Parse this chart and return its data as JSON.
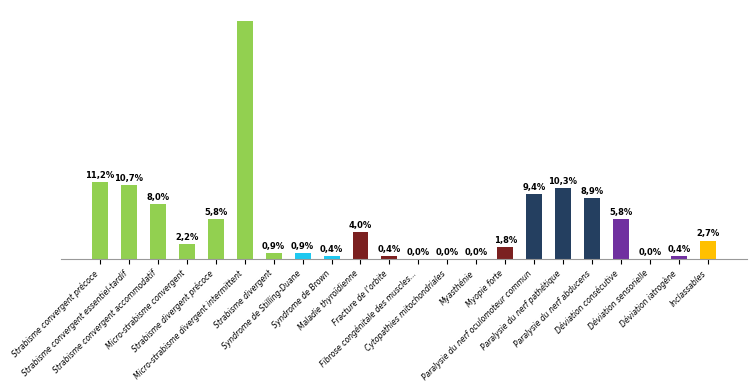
{
  "categories": [
    "Strabisme convergent précoce",
    "Strabisme convergent essentiel-tardif",
    "Strabisme convergent accommodatif",
    "Micro-strabisme convergent",
    "Strabisme divergent précoce",
    "Micro-strabisme divergent intermittent",
    "Strabisme divergent",
    "Syndrome de Stilling-Duane",
    "Syndrome de Brown",
    "Maladie thyroïdienne",
    "Fracture de l’orbite",
    "Fibrose congénitale des muscles...",
    "Cytopathies mitochondriales",
    "Myasthénie",
    "Myopie forte",
    "Paralysie du nerf oculomoteur commun",
    "Paralysie du nerf pathétique",
    "Paralysie du nerf abducens",
    "Déviation consécutive",
    "Déviation sensorielle",
    "Déviation iatrogène",
    "Inclassables"
  ],
  "values": [
    11.2,
    10.7,
    8.0,
    2.2,
    5.8,
    34.5,
    0.9,
    0.9,
    0.4,
    4.0,
    0.4,
    0.0,
    0.0,
    0.0,
    1.8,
    9.4,
    10.3,
    8.9,
    5.8,
    0.0,
    0.4,
    2.7
  ],
  "labels": [
    "11,2%",
    "10,7%",
    "8,0%",
    "2,2%",
    "5,8%",
    "",
    "0,9%",
    "0,9%",
    "0,4%",
    "4,0%",
    "0,4%",
    "0,0%",
    "0,0%",
    "0,0%",
    "1,8%",
    "9,4%",
    "10,3%",
    "8,9%",
    "5,8%",
    "0,0%",
    "0,4%",
    "2,7%"
  ],
  "colors": [
    "#92d050",
    "#92d050",
    "#92d050",
    "#92d050",
    "#92d050",
    "#92d050",
    "#92d050",
    "#1ec8f0",
    "#1ec8f0",
    "#7b2020",
    "#7b2020",
    "#7b2020",
    "#7b2020",
    "#7b2020",
    "#7b2020",
    "#243f60",
    "#243f60",
    "#243f60",
    "#7030a0",
    "#7030a0",
    "#7030a0",
    "#ffc000"
  ],
  "ylim": [
    0,
    37
  ],
  "figsize": [
    7.51,
    3.86
  ],
  "dpi": 100,
  "bar_width": 0.55,
  "label_fontsize": 6.0,
  "tick_fontsize": 5.5
}
